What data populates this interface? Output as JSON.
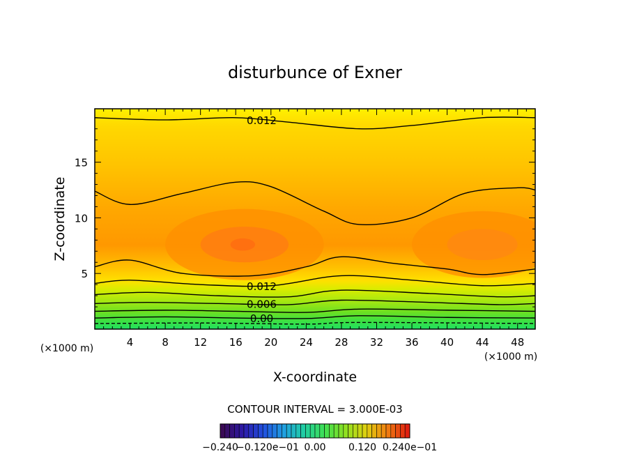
{
  "chart_data": {
    "type": "contour",
    "title": "disturbunce of Exner",
    "xlabel": "X-coordinate",
    "ylabel": "Z-coordinate",
    "x_unit_label": "(×1000 m)",
    "z_unit_label": "(×1000 m)",
    "xlim": [
      0,
      50
    ],
    "ylim": [
      0,
      19.8
    ],
    "x_ticks": [
      4,
      8,
      12,
      16,
      20,
      24,
      28,
      32,
      36,
      40,
      44,
      48
    ],
    "y_ticks": [
      5,
      10,
      15
    ],
    "contour_interval_text": "CONTOUR INTERVAL = 3.000E-03",
    "contour_labels": [
      {
        "text": "0.012",
        "x": 18,
        "z": 18.8
      },
      {
        "text": "0.012",
        "x": 18,
        "z": 3.9
      },
      {
        "text": "0.006",
        "x": 18,
        "z": 2.3
      },
      {
        "text": "0.00",
        "x": 18,
        "z": 1.0
      }
    ],
    "contour_lines": [
      {
        "level": 0.012,
        "points": [
          [
            0,
            19.0
          ],
          [
            8,
            18.8
          ],
          [
            16,
            19.0
          ],
          [
            22,
            18.6
          ],
          [
            30,
            18.0
          ],
          [
            36,
            18.3
          ],
          [
            44,
            19.0
          ],
          [
            50,
            19.0
          ]
        ]
      },
      {
        "level": 0.015,
        "points": [
          [
            0,
            12.4
          ],
          [
            4,
            11.2
          ],
          [
            10,
            12.2
          ],
          [
            16,
            13.2
          ],
          [
            20,
            12.8
          ],
          [
            26,
            10.6
          ],
          [
            30,
            9.4
          ],
          [
            36,
            10.0
          ],
          [
            42,
            12.2
          ],
          [
            48,
            12.7
          ],
          [
            50,
            12.5
          ]
        ]
      },
      {
        "level": 0.015,
        "points": [
          [
            0,
            5.6
          ],
          [
            4,
            6.2
          ],
          [
            10,
            5.0
          ],
          [
            18,
            4.8
          ],
          [
            24,
            5.6
          ],
          [
            28,
            6.5
          ],
          [
            34,
            5.9
          ],
          [
            40,
            5.4
          ],
          [
            44,
            4.9
          ],
          [
            50,
            5.4
          ]
        ]
      },
      {
        "level": 0.012,
        "points": [
          [
            0,
            4.1
          ],
          [
            4,
            4.4
          ],
          [
            12,
            4.0
          ],
          [
            20,
            3.9
          ],
          [
            28,
            4.8
          ],
          [
            36,
            4.4
          ],
          [
            44,
            3.9
          ],
          [
            50,
            4.1
          ]
        ]
      },
      {
        "level": 0.009,
        "points": [
          [
            0,
            3.1
          ],
          [
            6,
            3.3
          ],
          [
            14,
            3.0
          ],
          [
            22,
            2.9
          ],
          [
            28,
            3.5
          ],
          [
            38,
            3.2
          ],
          [
            46,
            2.9
          ],
          [
            50,
            3.0
          ]
        ]
      },
      {
        "level": 0.006,
        "points": [
          [
            0,
            2.3
          ],
          [
            6,
            2.4
          ],
          [
            14,
            2.3
          ],
          [
            22,
            2.2
          ],
          [
            28,
            2.6
          ],
          [
            38,
            2.4
          ],
          [
            46,
            2.2
          ],
          [
            50,
            2.3
          ]
        ]
      },
      {
        "level": 0.003,
        "points": [
          [
            0,
            1.6
          ],
          [
            8,
            1.7
          ],
          [
            16,
            1.6
          ],
          [
            24,
            1.5
          ],
          [
            30,
            1.8
          ],
          [
            40,
            1.7
          ],
          [
            50,
            1.6
          ]
        ]
      },
      {
        "level": 0.0,
        "points": [
          [
            0,
            1.0
          ],
          [
            8,
            1.1
          ],
          [
            16,
            1.0
          ],
          [
            24,
            0.95
          ],
          [
            30,
            1.2
          ],
          [
            40,
            1.05
          ],
          [
            50,
            1.0
          ]
        ]
      },
      {
        "level": -0.003,
        "points": [
          [
            0,
            0.5
          ],
          [
            12,
            0.55
          ],
          [
            24,
            0.45
          ],
          [
            30,
            0.6
          ],
          [
            50,
            0.5
          ]
        ],
        "dashed": true
      }
    ],
    "colorbar": {
      "labels": [
        "−0.240",
        "−0.120e−01",
        "0.00",
        "0.120",
        "0.240e−01"
      ],
      "colors": [
        "#3a0a55",
        "#2c1aa8",
        "#2050e0",
        "#20a0e0",
        "#20d0a0",
        "#40e050",
        "#90e020",
        "#e0d010",
        "#f08010",
        "#e02010"
      ]
    },
    "colors": {
      "band_top": "#ffd400",
      "band_upper": "#ffc000",
      "band_mid": "#ff9f00",
      "band_core": "#ff8d10",
      "band_bottom_green": "#30e030",
      "band_yellow_green": "#c8e800"
    }
  }
}
